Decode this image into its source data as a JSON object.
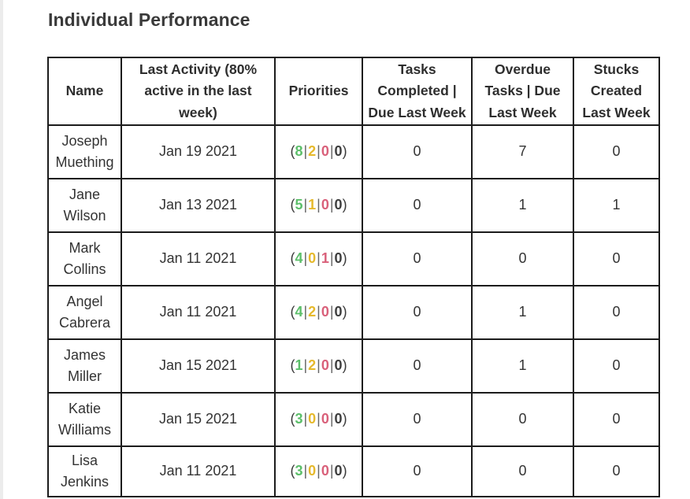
{
  "title": "Individual Performance",
  "colors": {
    "priority_1": "#5cbf6a",
    "priority_2": "#e6b92c",
    "priority_3": "#d9607a",
    "priority_4": "#3d3d3d",
    "border": "#1c1c1c"
  },
  "table": {
    "headers": {
      "name": "Name",
      "last_activity": "Last Activity (80% active in the last week)",
      "priorities": "Priorities",
      "tasks_completed": "Tasks Completed | Due Last Week",
      "overdue": "Overdue Tasks | Due Last Week",
      "stucks": "Stucks Created Last Week"
    },
    "rows": [
      {
        "name": "Joseph Muething",
        "last_activity": "Jan 19 2021",
        "priorities": [
          "8",
          "2",
          "0",
          "0"
        ],
        "tasks_completed": "0",
        "overdue": "7",
        "stucks": "0"
      },
      {
        "name": "Jane Wilson",
        "last_activity": "Jan 13 2021",
        "priorities": [
          "5",
          "1",
          "0",
          "0"
        ],
        "tasks_completed": "0",
        "overdue": "1",
        "stucks": "1"
      },
      {
        "name": "Mark Collins",
        "last_activity": "Jan 11 2021",
        "priorities": [
          "4",
          "0",
          "1",
          "0"
        ],
        "tasks_completed": "0",
        "overdue": "0",
        "stucks": "0"
      },
      {
        "name": "Angel Cabrera",
        "last_activity": "Jan 11 2021",
        "priorities": [
          "4",
          "2",
          "0",
          "0"
        ],
        "tasks_completed": "0",
        "overdue": "1",
        "stucks": "0"
      },
      {
        "name": "James Miller",
        "last_activity": "Jan 15 2021",
        "priorities": [
          "1",
          "2",
          "0",
          "0"
        ],
        "tasks_completed": "0",
        "overdue": "1",
        "stucks": "0"
      },
      {
        "name": "Katie Williams",
        "last_activity": "Jan 15 2021",
        "priorities": [
          "3",
          "0",
          "0",
          "0"
        ],
        "tasks_completed": "0",
        "overdue": "0",
        "stucks": "0"
      },
      {
        "name": "Lisa Jenkins",
        "last_activity": "Jan 11 2021",
        "priorities": [
          "3",
          "0",
          "0",
          "0"
        ],
        "tasks_completed": "0",
        "overdue": "0",
        "stucks": "0"
      }
    ]
  }
}
